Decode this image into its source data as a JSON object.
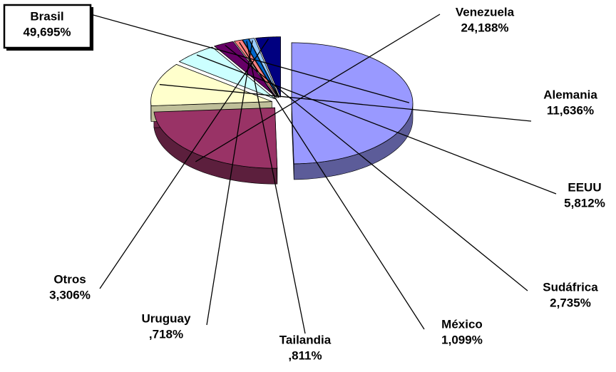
{
  "chart_data": {
    "type": "pie",
    "categories": [
      "Brasil",
      "Venezuela",
      "Alemania",
      "EEUU",
      "Sudáfrica",
      "México",
      "Tailandia",
      "Uruguay",
      "Otros"
    ],
    "values": [
      49.695,
      24.188,
      11.636,
      5.812,
      2.735,
      1.099,
      0.811,
      0.718,
      3.306
    ],
    "value_labels": [
      "49,695%",
      "24,188%",
      "11,636%",
      "5,812%",
      "2,735%",
      "1,099%",
      ",811%",
      ",718%",
      "3,306%"
    ],
    "colors": [
      "#9999ff",
      "#993366",
      "#ffffcc",
      "#ccffff",
      "#660066",
      "#ff8080",
      "#0066cc",
      "#99ccff",
      "#000080"
    ]
  }
}
